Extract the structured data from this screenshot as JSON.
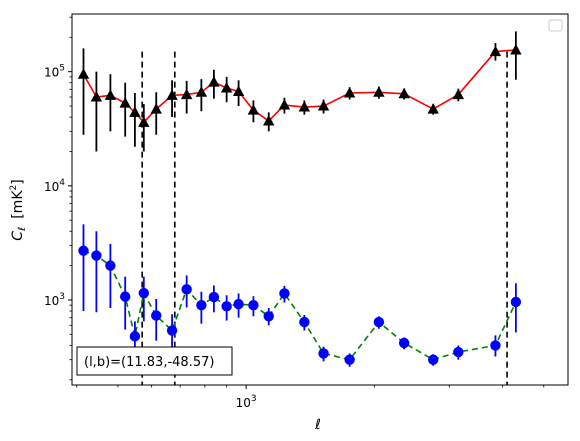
{
  "chart_data": {
    "type": "scatter",
    "xlabel": "ℓ",
    "ylabel_main": "C",
    "ylabel_sub": "ℓ",
    "ylabel_units": "[mK",
    "ylabel_units_sup": "2",
    "ylabel_units_close": "]",
    "x_scale": "log",
    "y_scale": "log",
    "xlim": [
      390,
      5700
    ],
    "ylim": [
      180,
      320000
    ],
    "x_tick_label": {
      "value": 1000,
      "base": "10",
      "exp": "3"
    },
    "y_tick_labels": [
      {
        "value": 1000,
        "base": "10",
        "exp": "3"
      },
      {
        "value": 10000,
        "base": "10",
        "exp": "4"
      },
      {
        "value": 100000,
        "base": "10",
        "exp": "5"
      }
    ],
    "vlines": [
      570,
      680,
      4100
    ],
    "annotation": "(l,b)=(11.83,-48.57)",
    "legend_position": "top-right",
    "grid": false,
    "colors": {
      "series_a_marker": "#000000",
      "series_a_line": "#ff0000",
      "series_b_marker": "#0000ff",
      "series_b_line": "#008000"
    },
    "series": [
      {
        "marker": "triangle",
        "line_style": "solid",
        "points": [
          {
            "x": 415,
            "y": 95000,
            "lo": 28000,
            "hi": 160000
          },
          {
            "x": 445,
            "y": 60000,
            "lo": 20000,
            "hi": 100000
          },
          {
            "x": 480,
            "y": 62000,
            "lo": 30000,
            "hi": 95000
          },
          {
            "x": 520,
            "y": 53000,
            "lo": 27000,
            "hi": 80000
          },
          {
            "x": 548,
            "y": 44000,
            "lo": 22000,
            "hi": 65000
          },
          {
            "x": 575,
            "y": 36000,
            "lo": 20000,
            "hi": 52000
          },
          {
            "x": 615,
            "y": 47000,
            "lo": 28000,
            "hi": 66000
          },
          {
            "x": 670,
            "y": 62000,
            "lo": 40000,
            "hi": 84000
          },
          {
            "x": 725,
            "y": 63000,
            "lo": 43000,
            "hi": 83000
          },
          {
            "x": 785,
            "y": 66000,
            "lo": 45000,
            "hi": 86000
          },
          {
            "x": 840,
            "y": 81000,
            "lo": 58000,
            "hi": 104000
          },
          {
            "x": 900,
            "y": 72000,
            "lo": 54000,
            "hi": 90000
          },
          {
            "x": 960,
            "y": 67000,
            "lo": 50000,
            "hi": 84000
          },
          {
            "x": 1040,
            "y": 46000,
            "lo": 36000,
            "hi": 56000
          },
          {
            "x": 1130,
            "y": 37000,
            "lo": 30000,
            "hi": 44000
          },
          {
            "x": 1230,
            "y": 51000,
            "lo": 43000,
            "hi": 59000
          },
          {
            "x": 1370,
            "y": 49000,
            "lo": 42000,
            "hi": 56000
          },
          {
            "x": 1520,
            "y": 50000,
            "lo": 43000,
            "hi": 57000
          },
          {
            "x": 1750,
            "y": 65000,
            "lo": 57000,
            "hi": 73000
          },
          {
            "x": 2050,
            "y": 66000,
            "lo": 58000,
            "hi": 74000
          },
          {
            "x": 2350,
            "y": 64000,
            "lo": 57000,
            "hi": 71000
          },
          {
            "x": 2750,
            "y": 47000,
            "lo": 42000,
            "hi": 52000
          },
          {
            "x": 3150,
            "y": 63000,
            "lo": 55000,
            "hi": 71000
          },
          {
            "x": 3850,
            "y": 150000,
            "lo": 125000,
            "hi": 178000
          },
          {
            "x": 4300,
            "y": 155000,
            "lo": 85000,
            "hi": 225000
          }
        ]
      },
      {
        "marker": "circle",
        "line_style": "dashed",
        "points": [
          {
            "x": 415,
            "y": 2700,
            "lo": 800,
            "hi": 4600
          },
          {
            "x": 445,
            "y": 2450,
            "lo": 780,
            "hi": 4000
          },
          {
            "x": 480,
            "y": 2000,
            "lo": 850,
            "hi": 3100
          },
          {
            "x": 520,
            "y": 1070,
            "lo": 550,
            "hi": 1600
          },
          {
            "x": 548,
            "y": 480,
            "lo": 300,
            "hi": 650
          },
          {
            "x": 575,
            "y": 1150,
            "lo": 650,
            "hi": 1600
          },
          {
            "x": 615,
            "y": 730,
            "lo": 440,
            "hi": 1020
          },
          {
            "x": 670,
            "y": 540,
            "lo": 330,
            "hi": 750
          },
          {
            "x": 725,
            "y": 1240,
            "lo": 860,
            "hi": 1640
          },
          {
            "x": 785,
            "y": 900,
            "lo": 620,
            "hi": 1180
          },
          {
            "x": 840,
            "y": 1060,
            "lo": 780,
            "hi": 1340
          },
          {
            "x": 900,
            "y": 880,
            "lo": 660,
            "hi": 1100
          },
          {
            "x": 960,
            "y": 920,
            "lo": 700,
            "hi": 1140
          },
          {
            "x": 1040,
            "y": 900,
            "lo": 720,
            "hi": 1080
          },
          {
            "x": 1130,
            "y": 720,
            "lo": 600,
            "hi": 850
          },
          {
            "x": 1230,
            "y": 1140,
            "lo": 950,
            "hi": 1330
          },
          {
            "x": 1370,
            "y": 640,
            "lo": 540,
            "hi": 740
          },
          {
            "x": 1520,
            "y": 340,
            "lo": 290,
            "hi": 390
          },
          {
            "x": 1750,
            "y": 300,
            "lo": 260,
            "hi": 340
          },
          {
            "x": 2050,
            "y": 640,
            "lo": 560,
            "hi": 720
          },
          {
            "x": 2350,
            "y": 420,
            "lo": 370,
            "hi": 470
          },
          {
            "x": 2750,
            "y": 300,
            "lo": 265,
            "hi": 335
          },
          {
            "x": 3150,
            "y": 350,
            "lo": 300,
            "hi": 400
          },
          {
            "x": 3850,
            "y": 400,
            "lo": 320,
            "hi": 490
          },
          {
            "x": 4300,
            "y": 960,
            "lo": 520,
            "hi": 1400
          }
        ]
      }
    ]
  }
}
